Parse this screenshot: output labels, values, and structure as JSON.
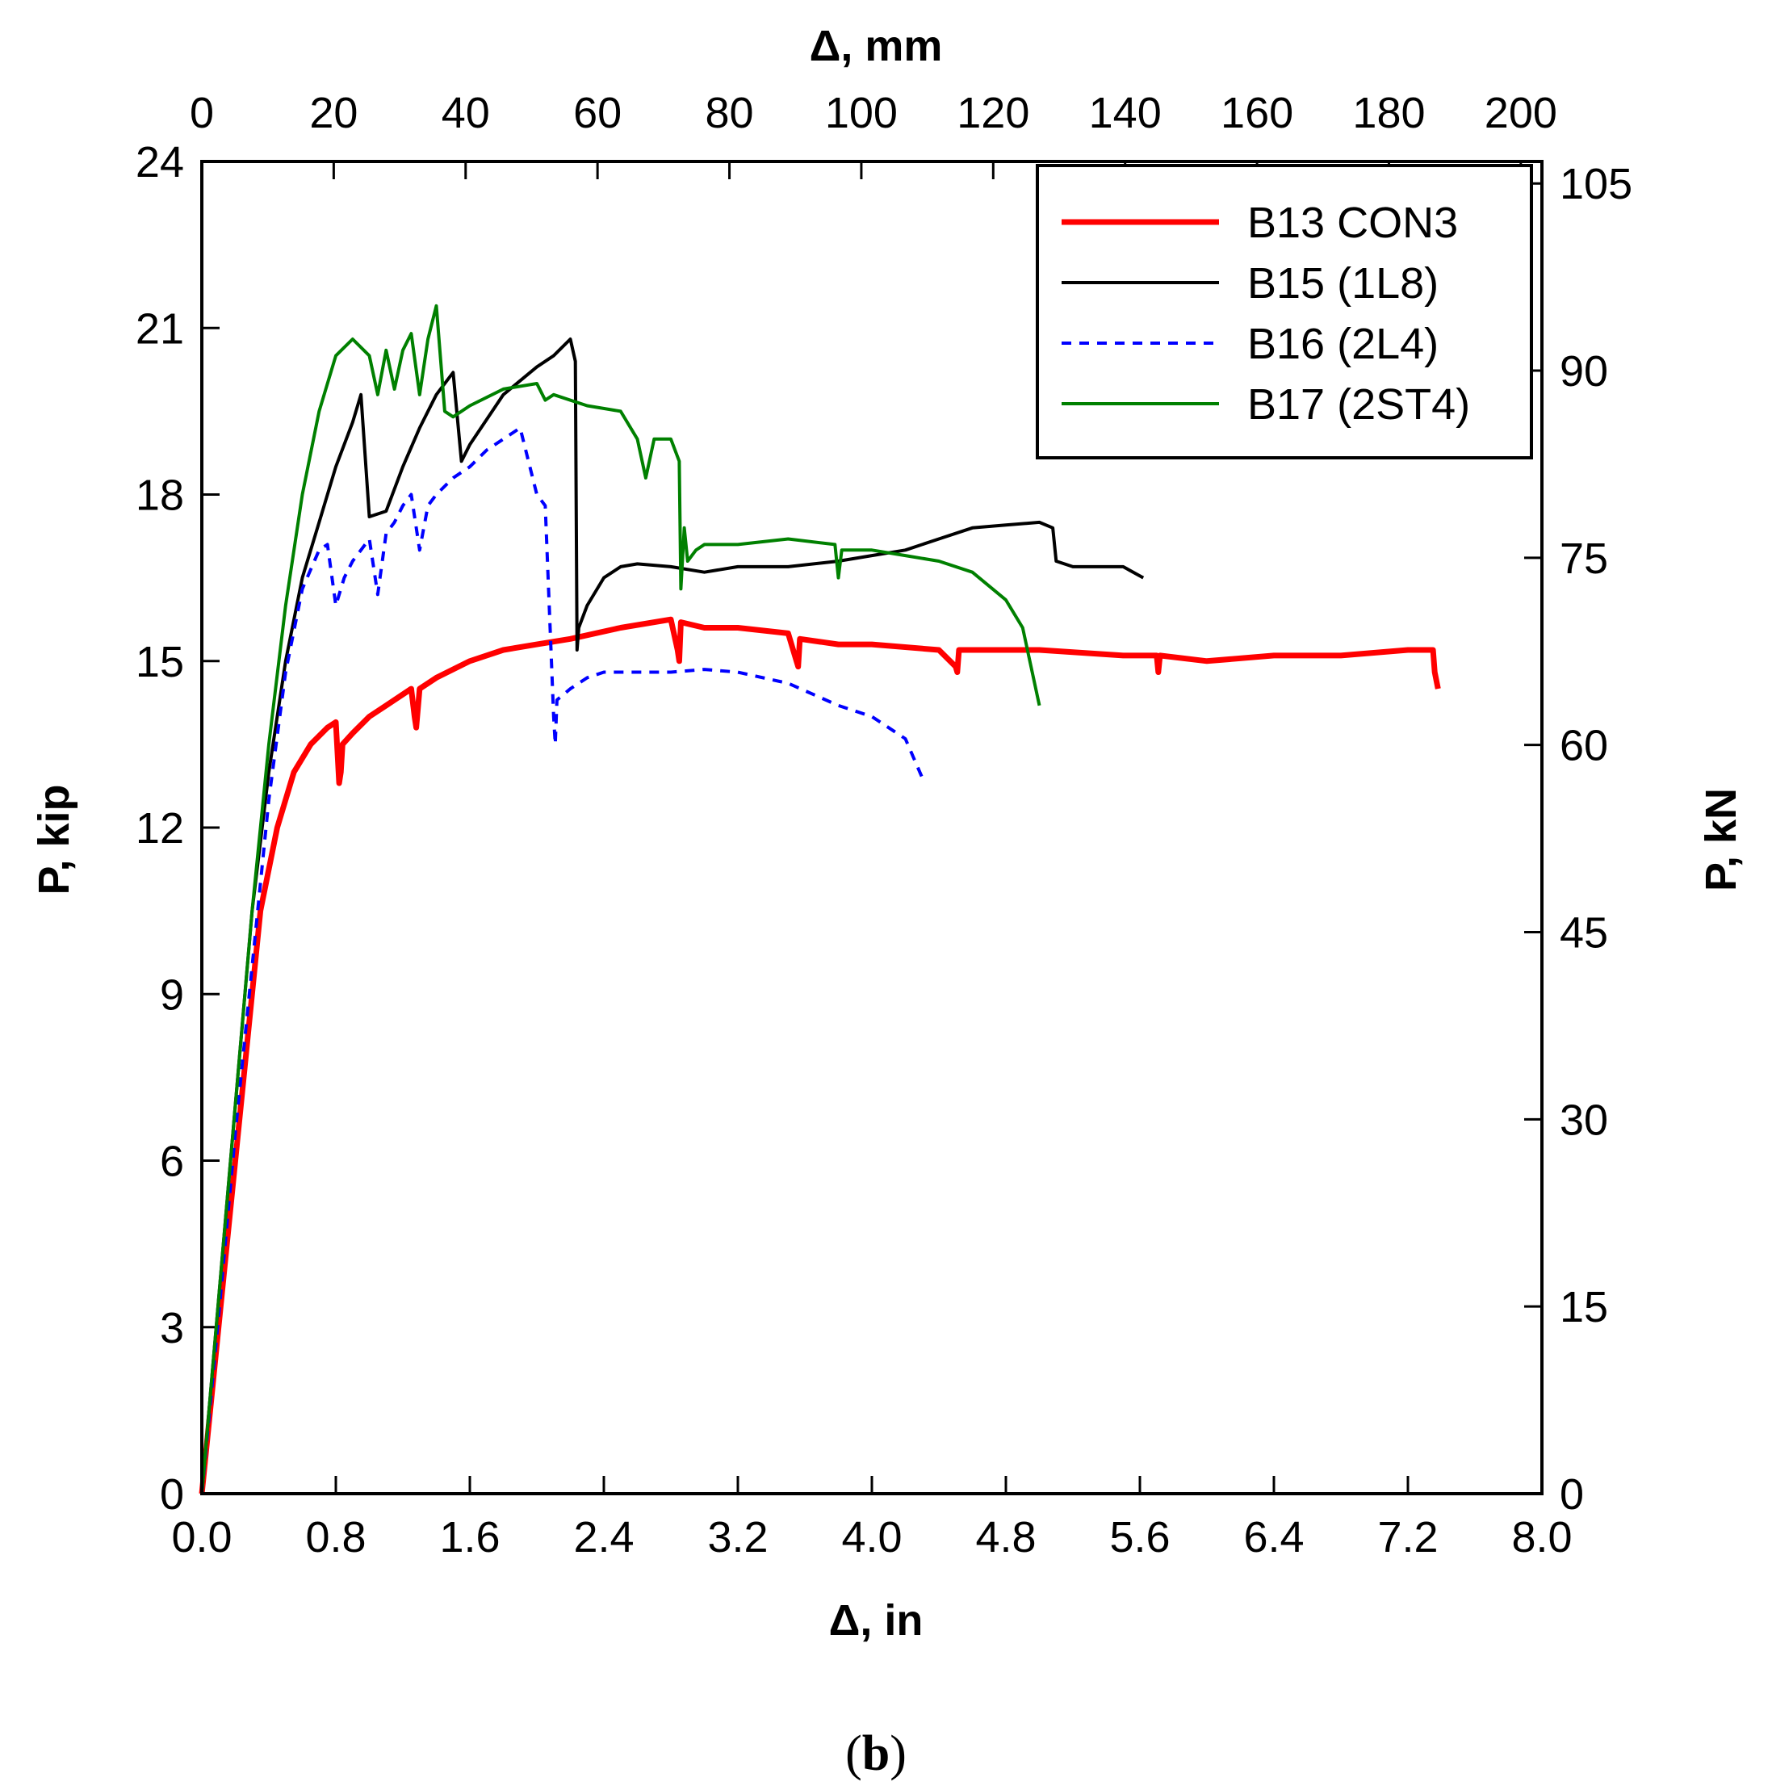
{
  "chart_data": {
    "type": "line",
    "caption": {
      "open": "(",
      "letter": "b",
      "close": ")"
    },
    "x_bottom": {
      "label": "Δ, in",
      "min": 0,
      "max": 8,
      "ticks": [
        "0.0",
        "0.8",
        "1.6",
        "2.4",
        "3.2",
        "4.0",
        "4.8",
        "5.6",
        "6.4",
        "7.2",
        "8.0"
      ],
      "tick_values": [
        0,
        0.8,
        1.6,
        2.4,
        3.2,
        4.0,
        4.8,
        5.6,
        6.4,
        7.2,
        8.0
      ]
    },
    "x_top": {
      "label": "Δ, mm",
      "min": 0,
      "max": 203.2,
      "ticks": [
        "0",
        "20",
        "40",
        "60",
        "80",
        "100",
        "120",
        "140",
        "160",
        "180",
        "200"
      ],
      "tick_values": [
        0,
        20,
        40,
        60,
        80,
        100,
        120,
        140,
        160,
        180,
        200
      ]
    },
    "y_left": {
      "label": "P, kip",
      "min": 0,
      "max": 24,
      "ticks": [
        "0",
        "3",
        "6",
        "9",
        "12",
        "15",
        "18",
        "21",
        "24"
      ],
      "tick_values": [
        0,
        3,
        6,
        9,
        12,
        15,
        18,
        21,
        24
      ]
    },
    "y_right": {
      "label": "P, kN",
      "min": 0,
      "max": 106.76,
      "ticks": [
        "0",
        "15",
        "30",
        "45",
        "60",
        "75",
        "90",
        "105"
      ],
      "tick_values": [
        0,
        15,
        30,
        45,
        60,
        75,
        90,
        105
      ]
    },
    "legend": {
      "position": "top-right"
    },
    "series": [
      {
        "name": "B13 CON3",
        "color": "#ff0000",
        "style": "solid",
        "weight": "thick",
        "x": [
          0,
          0.05,
          0.15,
          0.25,
          0.35,
          0.45,
          0.55,
          0.65,
          0.75,
          0.8,
          0.82,
          0.83,
          0.84,
          0.9,
          1.0,
          1.1,
          1.25,
          1.27,
          1.28,
          1.3,
          1.4,
          1.6,
          1.8,
          2.0,
          2.2,
          2.5,
          2.8,
          2.84,
          2.85,
          2.86,
          3.0,
          3.2,
          3.5,
          3.55,
          3.56,
          3.57,
          3.8,
          4.0,
          4.4,
          4.5,
          4.51,
          4.52,
          4.8,
          5.0,
          5.5,
          5.7,
          5.71,
          5.72,
          6.0,
          6.4,
          6.8,
          7.2,
          7.35,
          7.36,
          7.38
        ],
        "y": [
          0,
          1.5,
          4.5,
          7.5,
          10.5,
          12.0,
          13.0,
          13.5,
          13.8,
          13.9,
          12.8,
          13.0,
          13.5,
          13.7,
          14.0,
          14.2,
          14.5,
          14.0,
          13.8,
          14.5,
          14.7,
          15.0,
          15.2,
          15.3,
          15.4,
          15.6,
          15.75,
          15.2,
          15.0,
          15.7,
          15.6,
          15.6,
          15.5,
          15.0,
          14.9,
          15.4,
          15.3,
          15.3,
          15.2,
          14.9,
          14.8,
          15.2,
          15.2,
          15.2,
          15.1,
          15.1,
          14.8,
          15.1,
          15.0,
          15.1,
          15.1,
          15.2,
          15.2,
          14.8,
          14.5
        ]
      },
      {
        "name": "B15 (1L8)",
        "color": "#000000",
        "style": "solid",
        "weight": "normal",
        "x": [
          0,
          0.1,
          0.2,
          0.3,
          0.4,
          0.5,
          0.6,
          0.7,
          0.8,
          0.9,
          0.95,
          1.0,
          1.1,
          1.2,
          1.3,
          1.4,
          1.5,
          1.55,
          1.6,
          1.8,
          2.0,
          2.1,
          2.2,
          2.23,
          2.24,
          2.25,
          2.3,
          2.4,
          2.5,
          2.6,
          2.8,
          3.0,
          3.2,
          3.5,
          3.8,
          4.0,
          4.2,
          4.4,
          4.6,
          4.8,
          5.0,
          5.08,
          5.1,
          5.2,
          5.5,
          5.62
        ],
        "y": [
          0,
          3.5,
          7.0,
          10.5,
          13.0,
          15.0,
          16.5,
          17.5,
          18.5,
          19.3,
          19.8,
          17.6,
          17.7,
          18.5,
          19.2,
          19.8,
          20.2,
          18.6,
          18.9,
          19.8,
          20.3,
          20.5,
          20.8,
          20.4,
          15.2,
          15.6,
          16.0,
          16.5,
          16.7,
          16.75,
          16.7,
          16.6,
          16.7,
          16.7,
          16.8,
          16.9,
          17.0,
          17.2,
          17.4,
          17.45,
          17.5,
          17.4,
          16.8,
          16.7,
          16.7,
          16.5
        ]
      },
      {
        "name": "B16 (2L4)",
        "color": "#0000ff",
        "style": "dashed",
        "weight": "normal",
        "x": [
          0,
          0.1,
          0.2,
          0.3,
          0.4,
          0.5,
          0.6,
          0.7,
          0.75,
          0.8,
          0.85,
          0.9,
          1.0,
          1.05,
          1.1,
          1.15,
          1.2,
          1.25,
          1.3,
          1.35,
          1.4,
          1.5,
          1.6,
          1.7,
          1.8,
          1.9,
          2.0,
          2.05,
          2.1,
          2.11,
          2.12,
          2.2,
          2.3,
          2.4,
          2.6,
          2.8,
          3.0,
          3.2,
          3.5,
          3.8,
          4.0,
          4.2,
          4.3
        ],
        "y": [
          0,
          3.2,
          6.5,
          9.5,
          12.5,
          14.8,
          16.3,
          17.0,
          17.1,
          16.0,
          16.5,
          16.8,
          17.2,
          16.2,
          17.3,
          17.5,
          17.8,
          18.0,
          17.0,
          17.8,
          18.0,
          18.3,
          18.5,
          18.8,
          19.0,
          19.2,
          18.0,
          17.8,
          14.0,
          13.5,
          14.3,
          14.5,
          14.7,
          14.8,
          14.8,
          14.8,
          14.85,
          14.8,
          14.6,
          14.2,
          14.0,
          13.6,
          12.9
        ]
      },
      {
        "name": "B17 (2ST4)",
        "color": "#008000",
        "style": "solid",
        "weight": "normal",
        "x": [
          0,
          0.1,
          0.2,
          0.3,
          0.4,
          0.5,
          0.6,
          0.7,
          0.8,
          0.9,
          1.0,
          1.05,
          1.1,
          1.15,
          1.2,
          1.25,
          1.3,
          1.35,
          1.4,
          1.45,
          1.5,
          1.6,
          1.8,
          2.0,
          2.05,
          2.1,
          2.3,
          2.5,
          2.6,
          2.65,
          2.7,
          2.8,
          2.85,
          2.86,
          2.88,
          2.9,
          2.95,
          3.0,
          3.2,
          3.5,
          3.78,
          3.8,
          3.82,
          4.0,
          4.2,
          4.4,
          4.6,
          4.8,
          4.9,
          5.0
        ],
        "y": [
          0,
          3.5,
          7.0,
          10.5,
          13.5,
          16.0,
          18.0,
          19.5,
          20.5,
          20.8,
          20.5,
          19.8,
          20.6,
          19.9,
          20.6,
          20.9,
          19.8,
          20.8,
          21.4,
          19.5,
          19.4,
          19.6,
          19.9,
          20.0,
          19.7,
          19.8,
          19.6,
          19.5,
          19.0,
          18.3,
          19.0,
          19.0,
          18.6,
          16.3,
          17.4,
          16.8,
          17.0,
          17.1,
          17.1,
          17.2,
          17.1,
          16.5,
          17.0,
          17.0,
          16.9,
          16.8,
          16.6,
          16.1,
          15.6,
          14.2
        ]
      }
    ]
  }
}
